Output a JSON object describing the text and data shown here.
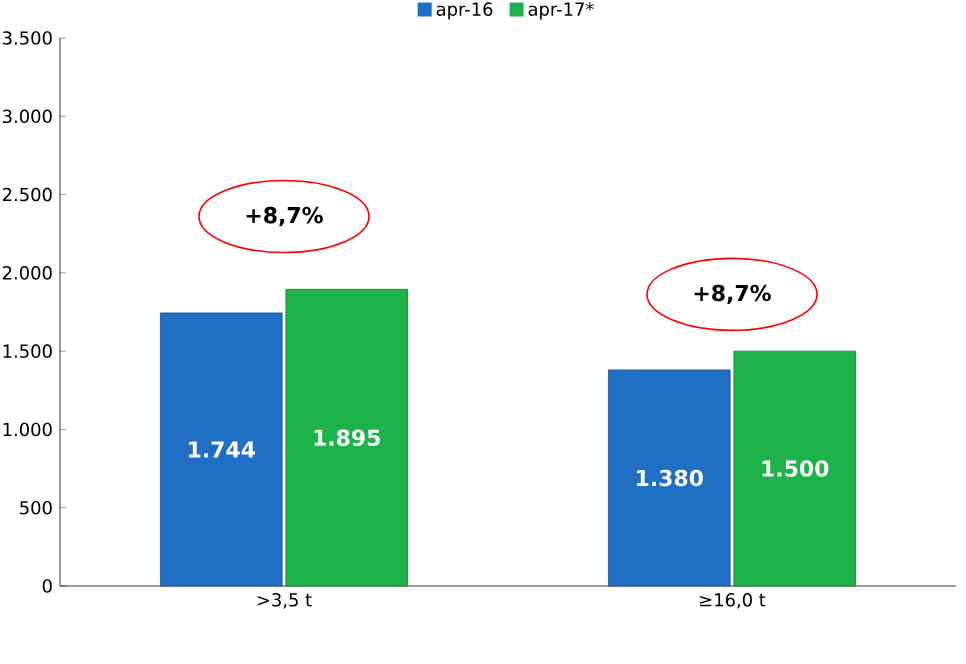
{
  "chart_data": {
    "type": "bar",
    "categories": [
      ">3,5 t",
      "≥16,0 t"
    ],
    "series": [
      {
        "name": "apr-16",
        "color": "#1f6fc5",
        "values": [
          1744,
          1380
        ],
        "value_labels": [
          "1.744",
          "1.380"
        ]
      },
      {
        "name": "apr-17*",
        "color": "#1db34a",
        "values": [
          1895,
          1500
        ],
        "value_labels": [
          "1.895",
          "1.500"
        ]
      }
    ],
    "ylim": [
      0,
      3500
    ],
    "yticks": [
      {
        "value": 0,
        "label": "0"
      },
      {
        "value": 500,
        "label": "500"
      },
      {
        "value": 1000,
        "label": "1.000"
      },
      {
        "value": 1500,
        "label": "1.500"
      },
      {
        "value": 2000,
        "label": "2.000"
      },
      {
        "value": 2500,
        "label": "2.500"
      },
      {
        "value": 3000,
        "label": "3.000"
      },
      {
        "value": 3500,
        "label": "3.500"
      }
    ],
    "annotations": [
      "+8,7%",
      "+8,7%"
    ],
    "grid": false,
    "legend": "top"
  }
}
